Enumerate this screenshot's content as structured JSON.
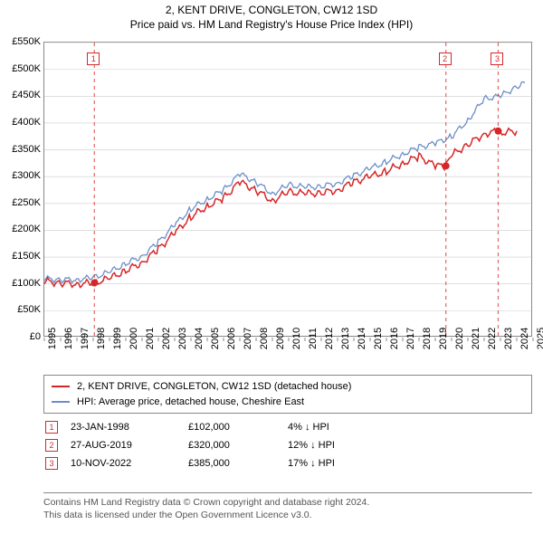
{
  "title": {
    "line1": "2, KENT DRIVE, CONGLETON, CW12 1SD",
    "line2": "Price paid vs. HM Land Registry's House Price Index (HPI)",
    "fontsize": 13
  },
  "chart": {
    "type": "line",
    "background_color": "#ffffff",
    "border_color": "#888888",
    "grid_color": "#cccccc",
    "ylim": [
      0,
      550000
    ],
    "ytick_step": 50000,
    "ytick_labels": [
      "£0",
      "£50K",
      "£100K",
      "£150K",
      "£200K",
      "£250K",
      "£300K",
      "£350K",
      "£400K",
      "£450K",
      "£500K",
      "£550K"
    ],
    "xlim": [
      1995,
      2025
    ],
    "xtick_step": 1,
    "xtick_labels": [
      "1995",
      "1996",
      "1997",
      "1998",
      "1999",
      "2000",
      "2001",
      "2002",
      "2003",
      "2004",
      "2005",
      "2006",
      "2007",
      "2008",
      "2009",
      "2010",
      "2011",
      "2012",
      "2013",
      "2014",
      "2015",
      "2016",
      "2017",
      "2018",
      "2019",
      "2020",
      "2021",
      "2022",
      "2023",
      "2024",
      "2025"
    ],
    "series": [
      {
        "name": "price_paid",
        "color": "#d62728",
        "line_width": 1.5,
        "data": [
          [
            1995,
            105000
          ],
          [
            1996,
            102000
          ],
          [
            1997,
            100000
          ],
          [
            1998,
            102000
          ],
          [
            1999,
            110000
          ],
          [
            2000,
            125000
          ],
          [
            2001,
            140000
          ],
          [
            2002,
            165000
          ],
          [
            2003,
            195000
          ],
          [
            2004,
            225000
          ],
          [
            2005,
            245000
          ],
          [
            2006,
            260000
          ],
          [
            2007,
            290000
          ],
          [
            2008,
            275000
          ],
          [
            2009,
            255000
          ],
          [
            2010,
            272000
          ],
          [
            2011,
            268000
          ],
          [
            2012,
            270000
          ],
          [
            2013,
            275000
          ],
          [
            2014,
            290000
          ],
          [
            2015,
            300000
          ],
          [
            2016,
            310000
          ],
          [
            2017,
            325000
          ],
          [
            2018,
            338000
          ],
          [
            2019,
            320000
          ],
          [
            2019.65,
            320000
          ],
          [
            2020,
            340000
          ],
          [
            2021,
            360000
          ],
          [
            2022,
            380000
          ],
          [
            2022.85,
            385000
          ],
          [
            2023,
            382000
          ],
          [
            2024,
            385000
          ]
        ]
      },
      {
        "name": "hpi",
        "color": "#6b8fc7",
        "line_width": 1.3,
        "data": [
          [
            1995,
            110000
          ],
          [
            1996,
            108000
          ],
          [
            1997,
            108000
          ],
          [
            1998,
            112000
          ],
          [
            1999,
            122000
          ],
          [
            2000,
            138000
          ],
          [
            2001,
            152000
          ],
          [
            2002,
            178000
          ],
          [
            2003,
            210000
          ],
          [
            2004,
            240000
          ],
          [
            2005,
            258000
          ],
          [
            2006,
            275000
          ],
          [
            2007,
            305000
          ],
          [
            2008,
            290000
          ],
          [
            2009,
            268000
          ],
          [
            2010,
            285000
          ],
          [
            2011,
            280000
          ],
          [
            2012,
            282000
          ],
          [
            2013,
            288000
          ],
          [
            2014,
            302000
          ],
          [
            2015,
            315000
          ],
          [
            2016,
            328000
          ],
          [
            2017,
            342000
          ],
          [
            2018,
            355000
          ],
          [
            2019,
            362000
          ],
          [
            2020,
            375000
          ],
          [
            2021,
            405000
          ],
          [
            2022,
            445000
          ],
          [
            2023,
            450000
          ],
          [
            2024,
            468000
          ],
          [
            2024.5,
            475000
          ]
        ]
      }
    ],
    "event_markers": [
      {
        "label": "1",
        "x": 1998.07,
        "y": 102000
      },
      {
        "label": "2",
        "x": 2019.65,
        "y": 320000
      },
      {
        "label": "3",
        "x": 2022.86,
        "y": 385000
      }
    ]
  },
  "legend": {
    "items": [
      {
        "color": "#d62728",
        "label": "2, KENT DRIVE, CONGLETON, CW12 1SD (detached house)"
      },
      {
        "color": "#6b8fc7",
        "label": "HPI: Average price, detached house, Cheshire East"
      }
    ]
  },
  "events_table": {
    "rows": [
      {
        "marker": "1",
        "date": "23-JAN-1998",
        "price": "£102,000",
        "delta": "4% ↓ HPI"
      },
      {
        "marker": "2",
        "date": "27-AUG-2019",
        "price": "£320,000",
        "delta": "12% ↓ HPI"
      },
      {
        "marker": "3",
        "date": "10-NOV-2022",
        "price": "£385,000",
        "delta": "17% ↓ HPI"
      }
    ]
  },
  "footnote": {
    "line1": "Contains HM Land Registry data © Crown copyright and database right 2024.",
    "line2": "This data is licensed under the Open Government Licence v3.0."
  }
}
